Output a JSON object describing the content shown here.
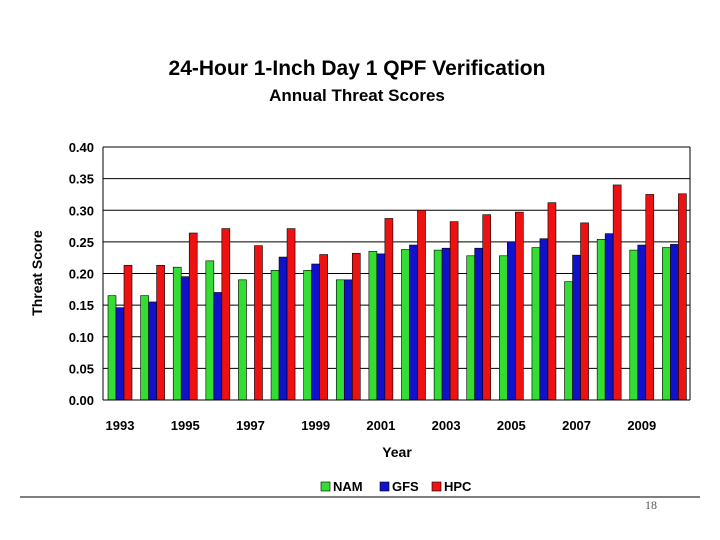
{
  "chart_data": {
    "type": "bar",
    "title": "24-Hour 1-Inch Day 1 QPF Verification",
    "subtitle": "Annual Threat Scores",
    "xlabel": "Year",
    "ylabel": "Threat Score",
    "ylim": [
      0,
      0.4
    ],
    "yticks": [
      "0.00",
      "0.05",
      "0.10",
      "0.15",
      "0.20",
      "0.25",
      "0.30",
      "0.35",
      "0.40"
    ],
    "categories": [
      "1993",
      "1994",
      "1995",
      "1996",
      "1997",
      "1998",
      "1999",
      "2000",
      "2001",
      "2002",
      "2003",
      "2004",
      "2005",
      "2006",
      "2007",
      "2008",
      "2009",
      "2010"
    ],
    "xtick_labels": [
      "1993",
      "1995",
      "1997",
      "1999",
      "2001",
      "2003",
      "2005",
      "2007",
      "2009"
    ],
    "series": [
      {
        "name": "NAM",
        "color": "#33dd33",
        "values": [
          0.165,
          0.165,
          0.21,
          0.22,
          0.19,
          0.205,
          0.205,
          0.19,
          0.235,
          0.238,
          0.237,
          0.228,
          0.228,
          0.241,
          0.187,
          0.254,
          0.237,
          0.241
        ]
      },
      {
        "name": "GFS",
        "color": "#1111cc",
        "values": [
          0.146,
          0.155,
          0.195,
          0.17,
          null,
          0.226,
          0.215,
          0.19,
          0.231,
          0.245,
          0.24,
          0.24,
          0.25,
          0.255,
          0.229,
          0.263,
          0.245,
          0.246
        ]
      },
      {
        "name": "HPC",
        "color": "#ee1111",
        "values": [
          0.213,
          0.213,
          0.264,
          0.271,
          0.244,
          0.271,
          0.23,
          0.232,
          0.287,
          0.3,
          0.282,
          0.293,
          0.297,
          0.312,
          0.28,
          0.34,
          0.325,
          0.326
        ]
      }
    ],
    "grid": true,
    "legend_position": "bottom"
  },
  "footer": {
    "page_number": "18"
  }
}
